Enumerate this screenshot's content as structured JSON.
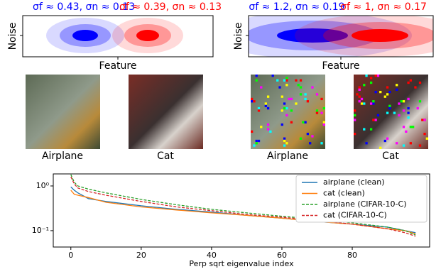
{
  "panels": [
    {
      "title": "σf ≈ 0.43, σn ≈ 0.13",
      "title2": "σf ≈ 0.39, σn ≈ 0.13",
      "ylabel": "Noise",
      "xlabel": "Feature",
      "images": [
        "Airplane",
        "Cat"
      ]
    },
    {
      "title": "σf ≈ 1.2, σn ≈ 0.19",
      "title2": "σf ≈ 1, σn ≈ 0.17",
      "ylabel": "Noise",
      "xlabel": "Feature",
      "images": [
        "Airplane",
        "Cat"
      ]
    }
  ],
  "chart_data": {
    "type": "line",
    "xlabel": "Perp sqrt eigenvalue index",
    "log_y": true,
    "legend": "upper right",
    "x": [
      0,
      1,
      2,
      5,
      10,
      20,
      30,
      40,
      50,
      60,
      70,
      80,
      90,
      95,
      98
    ],
    "series": [
      {
        "name": "airplane (clean)",
        "color": "#1f77b4",
        "dash": false,
        "values": [
          0.95,
          0.8,
          0.7,
          0.52,
          0.45,
          0.36,
          0.3,
          0.26,
          0.22,
          0.19,
          0.16,
          0.14,
          0.12,
          0.1,
          0.09
        ]
      },
      {
        "name": "cat (clean)",
        "color": "#ff7f0e",
        "dash": false,
        "values": [
          0.8,
          0.65,
          0.62,
          0.55,
          0.43,
          0.34,
          0.29,
          0.25,
          0.22,
          0.19,
          0.16,
          0.14,
          0.11,
          0.1,
          0.085
        ]
      },
      {
        "name": "airplane (CIFAR-10-C)",
        "color": "#2ca02c",
        "dash": true,
        "values": [
          1.8,
          1.2,
          1.0,
          0.85,
          0.7,
          0.5,
          0.38,
          0.3,
          0.25,
          0.21,
          0.18,
          0.15,
          0.12,
          0.1,
          0.08
        ]
      },
      {
        "name": "cat (CIFAR-10-C)",
        "color": "#d62728",
        "dash": true,
        "values": [
          1.6,
          1.1,
          0.9,
          0.75,
          0.62,
          0.45,
          0.34,
          0.28,
          0.23,
          0.2,
          0.17,
          0.14,
          0.11,
          0.09,
          0.075
        ]
      }
    ],
    "xlim": [
      -5,
      102
    ],
    "xticks": [
      0,
      20,
      40,
      60,
      80
    ],
    "ylim": [
      0.043,
      1.86
    ],
    "yticks": [
      {
        "value": 1,
        "label": "10⁰"
      },
      {
        "value": 0.1,
        "label": "10⁻¹"
      }
    ]
  }
}
